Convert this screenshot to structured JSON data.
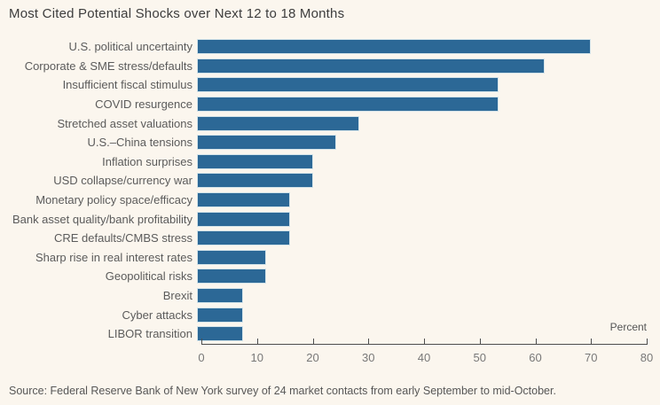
{
  "source": "Source: Federal Reserve Bank of New York survey of 24 market contacts from early September to mid-October.",
  "chart_data": {
    "type": "bar",
    "orientation": "horizontal",
    "title": "Most Cited Potential Shocks over Next 12 to 18 Months",
    "axis_unit_label": "Percent",
    "categories": [
      "U.S. political uncertainty",
      "Corporate & SME stress/defaults",
      "Insufficient fiscal stimulus",
      "COVID resurgence",
      "Stretched asset valuations",
      "U.S.–China tensions",
      "Inflation surprises",
      "USD collapse/currency war",
      "Monetary policy space/efficacy",
      "Bank asset quality/bank profitability",
      "CRE defaults/CMBS stress",
      "Sharp rise in real interest rates",
      "Geopolitical risks",
      "Brexit",
      "Cyber attacks",
      "LIBOR transition"
    ],
    "values": [
      70.8,
      62.5,
      54.2,
      54.2,
      29.2,
      25.0,
      20.8,
      20.8,
      16.7,
      16.7,
      16.7,
      12.5,
      12.5,
      8.3,
      8.3,
      8.3
    ],
    "xlabel": "Percent",
    "ylabel": "",
    "xlim": [
      0,
      80
    ],
    "x_ticks": [
      0,
      10,
      20,
      30,
      40,
      50,
      60,
      70,
      80
    ],
    "grid": false,
    "legend": false,
    "bar_color": "#2C6896",
    "bar_border_color": "#D3E3E9",
    "background_color": "#FBF6EE"
  }
}
